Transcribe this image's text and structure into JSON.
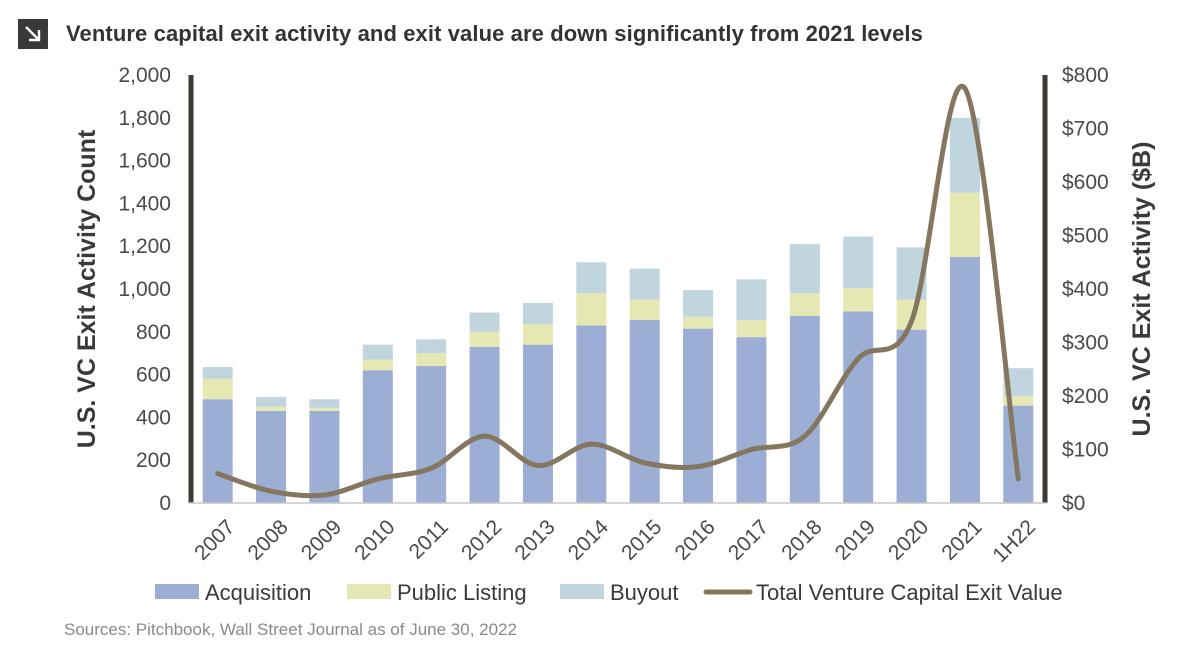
{
  "header": {
    "title": "Venture capital exit activity and exit value are down significantly from 2021 levels",
    "icon": "arrow-down-right-icon"
  },
  "footer": {
    "source": "Sources: Pitchbook, Wall Street Journal as of June 30, 2022"
  },
  "chart_data": {
    "type": "bar",
    "stacked": true,
    "title": "Venture capital exit activity and exit value are down significantly from 2021 levels",
    "categories": [
      "2007",
      "2008",
      "2009",
      "2010",
      "2011",
      "2012",
      "2013",
      "2014",
      "2015",
      "2016",
      "2017",
      "2018",
      "2019",
      "2020",
      "2021",
      "1H22"
    ],
    "series": [
      {
        "name": "Acquisition",
        "axis": "left",
        "color": "#9caed3",
        "values": [
          485,
          430,
          430,
          620,
          640,
          730,
          740,
          830,
          855,
          815,
          775,
          875,
          895,
          810,
          1150,
          455
        ]
      },
      {
        "name": "Public Listing",
        "axis": "left",
        "color": "#e6e8b4",
        "values": [
          95,
          20,
          15,
          50,
          60,
          70,
          95,
          150,
          95,
          55,
          80,
          105,
          110,
          140,
          300,
          45
        ]
      },
      {
        "name": "Buyout",
        "axis": "left",
        "color": "#c1d5df",
        "values": [
          55,
          45,
          40,
          70,
          65,
          90,
          100,
          145,
          145,
          125,
          190,
          230,
          240,
          245,
          350,
          130
        ]
      }
    ],
    "line_series": {
      "name": "Total Venture Capital Exit Value",
      "axis": "right",
      "color": "#85775f",
      "values": [
        55,
        22,
        15,
        45,
        65,
        125,
        70,
        110,
        75,
        68,
        100,
        125,
        270,
        340,
        775,
        45
      ]
    },
    "ylabel": "U.S. VC Exit Activity Count",
    "ylabel_right": "U.S. VC Exit Activity ($B)",
    "ylim": [
      0,
      2000
    ],
    "ylim_right": [
      0,
      800
    ],
    "yticks": [
      "0",
      "200",
      "400",
      "600",
      "800",
      "1,000",
      "1,200",
      "1,400",
      "1,600",
      "1,800",
      "2,000"
    ],
    "yticks_right": [
      "$0",
      "$100",
      "$200",
      "$300",
      "$400",
      "$500",
      "$600",
      "$700",
      "$800"
    ],
    "legend_position": "bottom",
    "grid": false
  }
}
